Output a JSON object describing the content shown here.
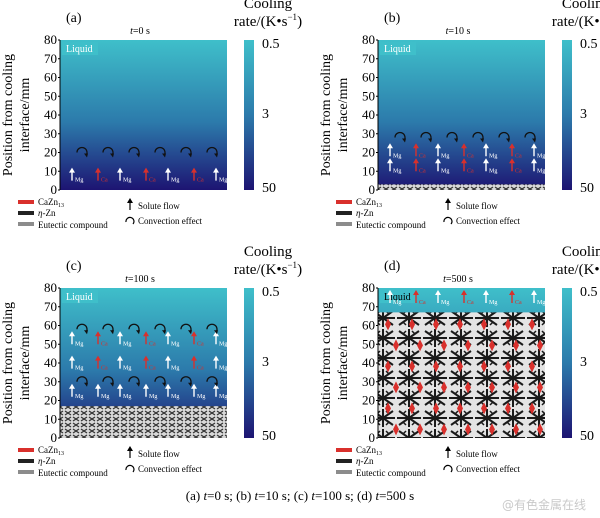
{
  "y_axis_label": "Position from cooling interface/mm",
  "colorbar": {
    "title_line1": "Cooling",
    "title_line2": "rate/(K•s",
    "title_sup": "−1",
    "title_close": ")",
    "ticks": [
      "0.5",
      "3",
      "50"
    ],
    "color_top": "#3fbfca",
    "color_bottom": "#1d1472"
  },
  "y_ticks": [
    "80",
    "70",
    "60",
    "50",
    "40",
    "30",
    "20",
    "10",
    "0"
  ],
  "labels": {
    "liquid": "Liquid",
    "mg": "Mg",
    "ca": "Ca"
  },
  "legend": {
    "cazn_main": "CaZn",
    "cazn_sub": "13",
    "eta": "η",
    "zn": "-Zn",
    "eutectic": "Eutectic compound",
    "solute_flow": "Solute flow",
    "convection": "Convection effect",
    "colors": {
      "cazn": "#d9302c",
      "eta": "#222222",
      "eutectic": "#8c8c8c"
    }
  },
  "panels": [
    {
      "tag": "(a)",
      "t_var": "t",
      "t_val": "=0 s",
      "solid_mm": 0,
      "liquid_top_color": "#3fbfca"
    },
    {
      "tag": "(b)",
      "t_var": "t",
      "t_val": "=10 s",
      "solid_mm": 3,
      "liquid_top_color": "#3fbfca"
    },
    {
      "tag": "(c)",
      "t_var": "t",
      "t_val": "=100 s",
      "solid_mm": 17,
      "liquid_top_color": "#3fbfca"
    },
    {
      "tag": "(d)",
      "t_var": "t",
      "t_val": "=500 s",
      "solid_mm": 67,
      "liquid_top_color": "#3fbfca"
    }
  ],
  "caption": {
    "a_tag": "(a) ",
    "a_t": "t",
    "a_v": "=0 s; ",
    "b_tag": "(b) ",
    "b_t": "t",
    "b_v": "=10 s; ",
    "c_tag": "(c) ",
    "c_t": "t",
    "c_v": "=100 s; ",
    "d_tag": "(d) ",
    "d_t": "t",
    "d_v": "=500 s"
  },
  "watermark": "@有色金属在线"
}
